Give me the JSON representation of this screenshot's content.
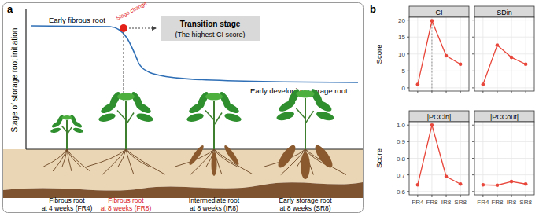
{
  "panel_a": {
    "label": "a",
    "y_axis_label": "Stage of storage root initiation",
    "curve_labels": [
      "Early fibrous root",
      "Early developing storage root"
    ],
    "stage_change": "Stage change",
    "transition_box": {
      "title": "Transition stage",
      "subtitle": "(The highest CI score)"
    },
    "samples": [
      {
        "lines": [
          "Fibrous root",
          "at 4 weeks (FR4)"
        ],
        "color": "#000000"
      },
      {
        "lines": [
          "Fibrous root",
          "at 8 weeks (FR8)"
        ],
        "color": "#d7261e"
      },
      {
        "lines": [
          "Intermediate root",
          "at 8 weeks (IR8)"
        ],
        "color": "#000000"
      },
      {
        "lines": [
          "Early storage root",
          "at 8 weeks (SR8)"
        ],
        "color": "#000000"
      }
    ]
  },
  "panel_b_label": "b",
  "chart_data": [
    {
      "type": "line",
      "title": "CI",
      "y_label": "Score",
      "categories": [
        "FR4",
        "FR8",
        "IR8",
        "SR8"
      ],
      "values": [
        1,
        19.8,
        9.5,
        7
      ],
      "color": "#e8463a",
      "marker": "circle",
      "ylim": [
        -0.95,
        20.85
      ],
      "yticks": [
        0,
        5,
        10,
        15,
        20
      ],
      "grid": true,
      "tick_labels": "y"
    },
    {
      "type": "line",
      "title": "SDin",
      "categories": [
        "FR4",
        "FR8",
        "IR8",
        "SR8"
      ],
      "values": [
        1,
        12.6,
        9,
        7
      ],
      "color": "#e8463a",
      "marker": "circle",
      "ylim": [
        -0.95,
        20.85
      ],
      "yticks": [
        0,
        5,
        10,
        15,
        20
      ],
      "grid": true,
      "tick_labels": false
    },
    {
      "type": "line",
      "title": "|PCCin|",
      "y_label": "Score",
      "categories": [
        "FR4",
        "FR8",
        "IR8",
        "SR8"
      ],
      "values": [
        0.64,
        1,
        0.69,
        0.645
      ],
      "color": "#e8463a",
      "marker": "circle",
      "ylim": [
        0.58,
        1.02
      ],
      "yticks": [
        0.6,
        0.7,
        0.8,
        0.9,
        {
          "value": 1,
          "label": "1.0"
        }
      ],
      "grid": true,
      "tick_labels": true
    },
    {
      "type": "line",
      "title": "|PCCout|",
      "categories": [
        "FR4",
        "FR8",
        "IR8",
        "SR8"
      ],
      "values": [
        0.64,
        0.638,
        0.66,
        0.645
      ],
      "color": "#e8463a",
      "marker": "circle",
      "ylim": [
        0.58,
        1.02
      ],
      "yticks": [
        0.6,
        0.7,
        0.8,
        0.9,
        {
          "value": 1,
          "label": "1.0"
        }
      ],
      "grid": true,
      "tick_labels": "x"
    }
  ]
}
